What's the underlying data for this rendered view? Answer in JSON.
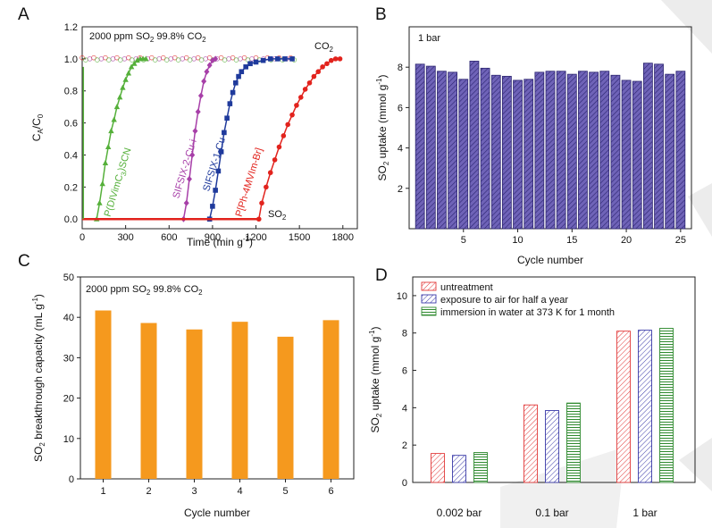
{
  "colors": {
    "magenta": "#a73fa8",
    "green": "#55b03a",
    "blue": "#1f3a9c",
    "red": "#e2231d",
    "purple": "#5a4aa3",
    "orange": "#f5991e",
    "hatchRed": "#e23a3a",
    "hatchBlue": "#3a3aa8",
    "hatchGreen": "#2f8a2f",
    "watermark": "#e9e9e9"
  },
  "chart_data": [
    {
      "id": "A",
      "type": "line",
      "panel": "A",
      "title_parts": [
        "2000 ppm SO",
        "2",
        " 99.8% CO",
        "2"
      ],
      "xlabel_parts": [
        "Time (min g",
        "-1",
        ")"
      ],
      "ylabel_parts": [
        "C",
        "A",
        "/C",
        "0"
      ],
      "xlim": [
        0,
        1900
      ],
      "ylim": [
        -0.06,
        1.2
      ],
      "xticks": [
        0,
        300,
        600,
        900,
        1200,
        1500,
        1800
      ],
      "yticks": [
        0.0,
        0.2,
        0.4,
        0.6,
        0.8,
        1.0,
        1.2
      ],
      "ytick_labels": [
        "0.0",
        "0.2",
        "0.4",
        "0.6",
        "0.8",
        "1.0",
        "1.2"
      ],
      "co2_label": [
        "CO",
        "2"
      ],
      "so2_label": [
        "SO",
        "2"
      ],
      "series": [
        {
          "name": "P(DIVimC3)SCN",
          "label_parts": [
            "P(DIVimC",
            "3",
            ")SCN"
          ],
          "color_key": "green",
          "marker": "triangle",
          "x": [
            100,
            120,
            140,
            160,
            180,
            200,
            220,
            240,
            260,
            280,
            300,
            320,
            340,
            360,
            380,
            400,
            420,
            440
          ],
          "y": [
            0.0,
            0.1,
            0.22,
            0.35,
            0.45,
            0.55,
            0.62,
            0.7,
            0.76,
            0.82,
            0.87,
            0.91,
            0.95,
            0.97,
            0.99,
            1.0,
            1.0,
            1.0
          ]
        },
        {
          "name": "SIFSIX-2-Cu-i",
          "label_parts": [
            "SIFSIX-2-Cu-i"
          ],
          "color_key": "magenta",
          "marker": "diamond",
          "x": [
            700,
            720,
            740,
            760,
            780,
            800,
            820,
            840,
            860,
            880,
            900,
            920
          ],
          "y": [
            0.0,
            0.1,
            0.25,
            0.4,
            0.55,
            0.67,
            0.77,
            0.86,
            0.92,
            0.96,
            0.99,
            1.0
          ]
        },
        {
          "name": "SIFSIX-1-Cu",
          "label_parts": [
            "SIFSIX-1-Cu"
          ],
          "color_key": "blue",
          "marker": "square",
          "x": [
            880,
            900,
            920,
            940,
            960,
            980,
            1000,
            1020,
            1040,
            1060,
            1080,
            1100,
            1130,
            1160,
            1200,
            1250,
            1300,
            1350,
            1400,
            1450
          ],
          "y": [
            0.0,
            0.08,
            0.18,
            0.3,
            0.42,
            0.54,
            0.63,
            0.72,
            0.79,
            0.85,
            0.89,
            0.92,
            0.95,
            0.97,
            0.98,
            0.99,
            1.0,
            1.0,
            1.0,
            1.0
          ]
        },
        {
          "name": "P[Ph-4MVIm-Br]",
          "label_parts": [
            "P[Ph-4MVIm-Br]"
          ],
          "color_key": "red",
          "marker": "circle",
          "x": [
            1220,
            1240,
            1270,
            1300,
            1330,
            1360,
            1390,
            1420,
            1450,
            1480,
            1510,
            1540,
            1570,
            1600,
            1630,
            1660,
            1690,
            1720,
            1750,
            1780
          ],
          "y": [
            0.0,
            0.1,
            0.2,
            0.29,
            0.37,
            0.45,
            0.52,
            0.59,
            0.65,
            0.71,
            0.76,
            0.81,
            0.85,
            0.89,
            0.92,
            0.95,
            0.97,
            0.99,
            1.0,
            1.0
          ]
        }
      ],
      "co2_series": {
        "x": [
          0,
          40,
          80,
          120,
          160,
          200,
          240,
          280,
          320,
          360,
          400,
          440,
          480,
          520,
          560,
          600,
          640,
          680,
          720,
          760,
          800,
          840,
          880,
          920,
          960,
          1000,
          1040,
          1080,
          1120,
          1160,
          1200,
          1240,
          1280,
          1320,
          1360,
          1400,
          1440
        ],
        "y": [
          1.0,
          1.0,
          1.0,
          1.0,
          1.0,
          1.0,
          1.0,
          1.0,
          1.0,
          1.0,
          1.0,
          1.0,
          1.0,
          1.0,
          1.0,
          1.0,
          1.0,
          1.0,
          1.0,
          1.0,
          1.0,
          1.0,
          1.0,
          1.0,
          1.0,
          1.0,
          1.0,
          1.0,
          1.0,
          1.0,
          1.0,
          1.0,
          1.0,
          1.0,
          1.0,
          1.0,
          1.0
        ]
      }
    },
    {
      "id": "B",
      "type": "bar",
      "panel": "B",
      "title": "1 bar",
      "xlabel": "Cycle number",
      "ylabel_parts": [
        "SO",
        "2",
        " uptake (mmol g",
        "-1",
        ")"
      ],
      "categories": [
        1,
        2,
        3,
        4,
        5,
        6,
        7,
        8,
        9,
        10,
        11,
        12,
        13,
        14,
        15,
        16,
        17,
        18,
        19,
        20,
        21,
        22,
        23,
        24,
        25
      ],
      "values": [
        8.15,
        8.05,
        7.8,
        7.75,
        7.4,
        8.3,
        7.95,
        7.6,
        7.55,
        7.35,
        7.4,
        7.75,
        7.8,
        7.8,
        7.65,
        7.8,
        7.75,
        7.8,
        7.6,
        7.35,
        7.3,
        8.2,
        8.15,
        7.65,
        7.8
      ],
      "xlim": [
        0,
        26
      ],
      "ylim": [
        0,
        10
      ],
      "xticks": [
        5,
        10,
        15,
        20,
        25
      ],
      "yticks": [
        2,
        4,
        6,
        8
      ],
      "color_key": "purple"
    },
    {
      "id": "C",
      "type": "bar",
      "panel": "C",
      "title_parts": [
        "2000 ppm SO",
        "2",
        "  99.8% CO",
        "2"
      ],
      "xlabel": "Cycle number",
      "ylabel_parts": [
        "SO",
        "2",
        " breakthrough capacity (mL g",
        "-1",
        ")"
      ],
      "categories": [
        1,
        2,
        3,
        4,
        5,
        6
      ],
      "values": [
        41.7,
        38.6,
        37.0,
        38.9,
        35.2,
        39.3
      ],
      "xlim": [
        0.5,
        6.5
      ],
      "ylim": [
        0,
        50
      ],
      "yticks": [
        0,
        10,
        20,
        30,
        40,
        50
      ],
      "color_key": "orange"
    },
    {
      "id": "D",
      "type": "bar",
      "panel": "D",
      "ylabel_parts": [
        "SO",
        "2",
        " uptake (mmol g",
        "-1",
        ")"
      ],
      "categories": [
        "0.002 bar",
        "0.1 bar",
        "1 bar"
      ],
      "ylim": [
        0,
        11
      ],
      "yticks": [
        0,
        2,
        4,
        6,
        8,
        10
      ],
      "series": [
        {
          "name": "untreatment",
          "values": [
            1.55,
            4.15,
            8.1
          ],
          "color_key": "hatchRed",
          "pattern": "diagonal"
        },
        {
          "name": "exposure to air for half a year",
          "values": [
            1.45,
            3.85,
            8.15
          ],
          "color_key": "hatchBlue",
          "pattern": "diagonal"
        },
        {
          "name": "immersion in water at 373 K for 1 month",
          "values": [
            1.6,
            4.25,
            8.25
          ],
          "color_key": "hatchGreen",
          "pattern": "horizontal"
        }
      ]
    }
  ]
}
